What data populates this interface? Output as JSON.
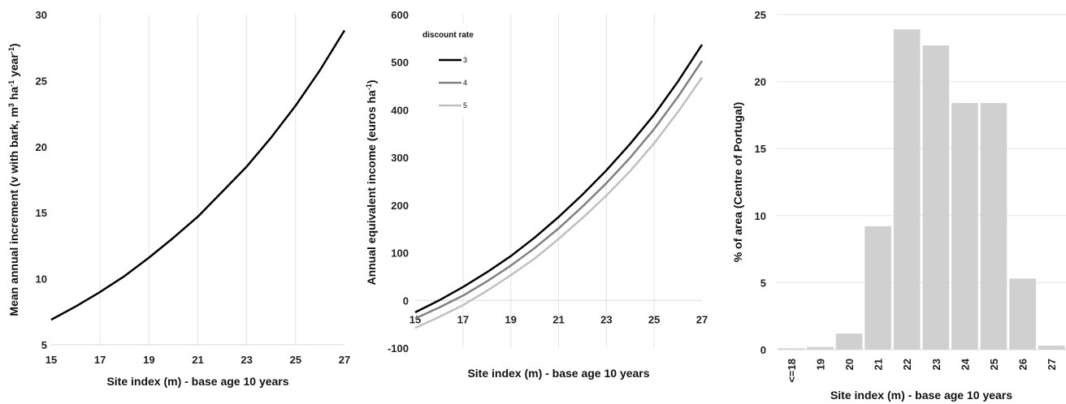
{
  "chart_data": [
    {
      "type": "line",
      "xlabel": "Site index (m) - base age 10 years",
      "ylabel_parts": [
        "Mean annual increment  (v with bark, m",
        "3",
        " ha",
        "-1",
        " year",
        "-1",
        ")"
      ],
      "xticks": [
        15,
        17,
        19,
        21,
        23,
        25,
        27
      ],
      "yticks": [
        5,
        10,
        15,
        20,
        25,
        30
      ],
      "xlim": [
        15,
        27
      ],
      "ylim": [
        5,
        30
      ],
      "grid": "vertical",
      "series": [
        {
          "color": "#000000",
          "x": [
            15,
            16,
            17,
            18,
            19,
            20,
            21,
            22,
            23,
            24,
            25,
            26,
            27
          ],
          "y": [
            6.9,
            7.9,
            9.0,
            10.2,
            11.6,
            13.1,
            14.7,
            16.6,
            18.5,
            20.7,
            23.1,
            25.8,
            28.8
          ]
        }
      ]
    },
    {
      "type": "line",
      "xlabel": "Site index (m) - base age 10 years",
      "ylabel_parts": [
        "Annual equivalent income (euros ha",
        "-1",
        ")"
      ],
      "xticks": [
        15,
        17,
        19,
        21,
        23,
        25,
        27
      ],
      "yticks": [
        -100,
        0,
        100,
        200,
        300,
        400,
        500,
        600
      ],
      "xlim": [
        15,
        27
      ],
      "ylim": [
        -100,
        600
      ],
      "grid": "vertical",
      "legend": {
        "title": "discount rate",
        "position": "top-left"
      },
      "series": [
        {
          "name": "3",
          "color": "#000000",
          "x": [
            15,
            16,
            17,
            18,
            19,
            20,
            21,
            22,
            23,
            24,
            25,
            26,
            27
          ],
          "y": [
            -25,
            0,
            28,
            59,
            93,
            132,
            175,
            222,
            273,
            329,
            390,
            460,
            537
          ]
        },
        {
          "name": "4",
          "color": "#808080",
          "x": [
            15,
            16,
            17,
            18,
            19,
            20,
            21,
            22,
            23,
            24,
            25,
            26,
            27
          ],
          "y": [
            -38,
            -15,
            10,
            40,
            73,
            110,
            151,
            197,
            246,
            300,
            360,
            428,
            503
          ]
        },
        {
          "name": "5",
          "color": "#c0c0c0",
          "x": [
            15,
            16,
            17,
            18,
            19,
            20,
            21,
            22,
            23,
            24,
            25,
            26,
            27
          ],
          "y": [
            -58,
            -35,
            -10,
            20,
            53,
            88,
            129,
            173,
            220,
            272,
            330,
            396,
            468
          ]
        }
      ]
    },
    {
      "type": "bar",
      "xlabel": "Site index (m) - base age 10 years",
      "ylabel": "% of area (Centre of Portugal)",
      "categories": [
        "<=18",
        "19",
        "20",
        "21",
        "22",
        "23",
        "24",
        "25",
        "26",
        "27"
      ],
      "values": [
        0.1,
        0.2,
        1.2,
        9.2,
        23.9,
        22.7,
        18.4,
        18.4,
        5.3,
        0.3
      ],
      "yticks": [
        0,
        5,
        10,
        15,
        20,
        25
      ],
      "ylim": [
        0,
        25
      ],
      "grid": "horizontal",
      "bar_color": "#d0d0d0"
    }
  ]
}
